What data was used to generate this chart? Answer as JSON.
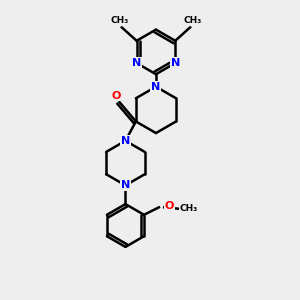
{
  "bg_color": "#eeeeee",
  "bond_color": "#000000",
  "N_color": "#0000ff",
  "O_color": "#ff0000",
  "C_color": "#000000",
  "line_width": 1.8,
  "figsize": [
    3.0,
    3.0
  ],
  "dpi": 100,
  "xlim": [
    0,
    10
  ],
  "ylim": [
    0,
    10
  ]
}
